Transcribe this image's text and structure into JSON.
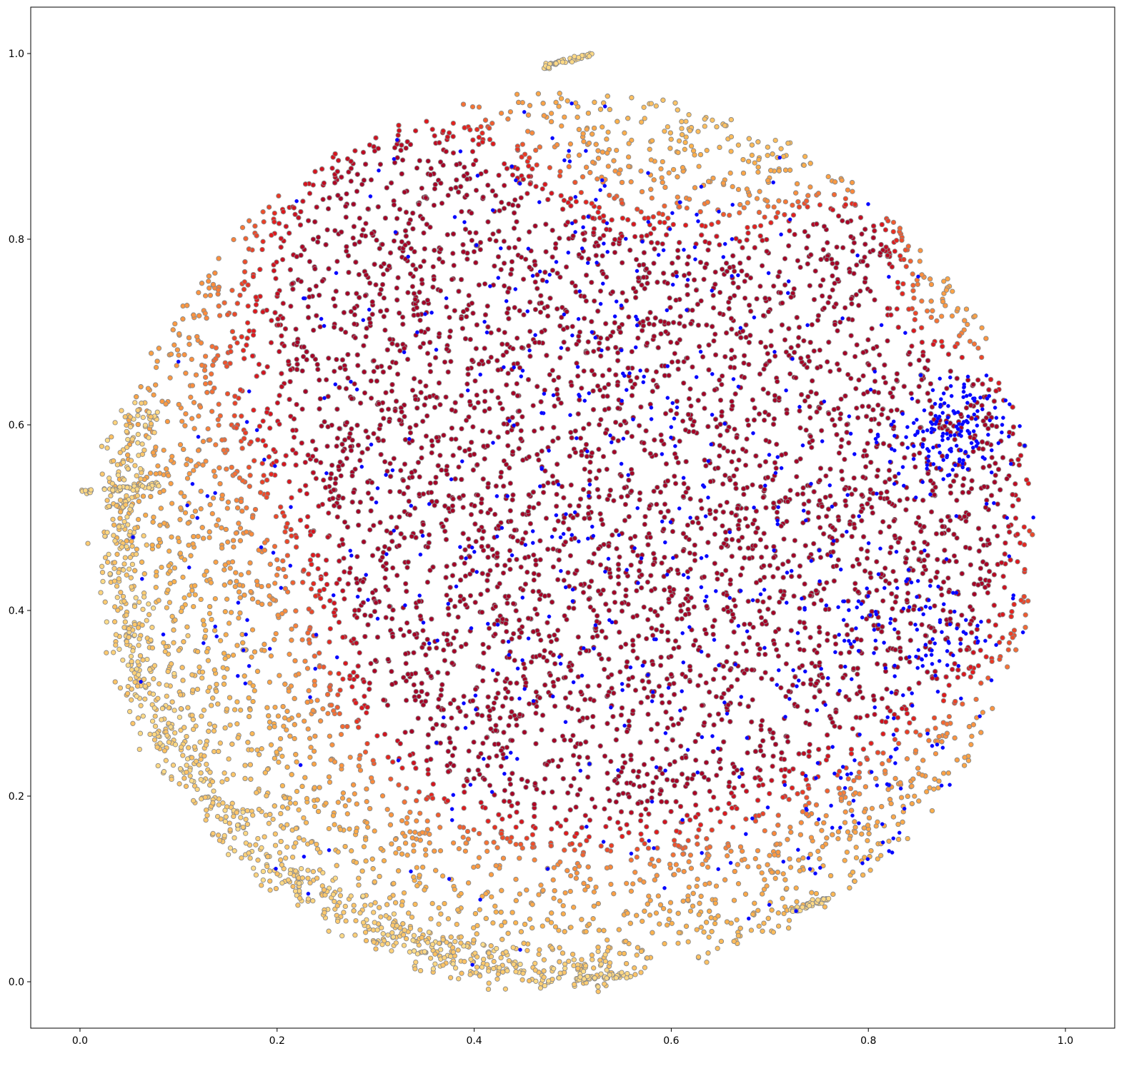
{
  "chart_data": {
    "type": "scatter",
    "title": "",
    "xlabel": "",
    "ylabel": "",
    "xlim": [
      -0.05,
      1.05
    ],
    "ylim": [
      -0.05,
      1.05
    ],
    "x_ticks": [
      0.0,
      0.2,
      0.4,
      0.6,
      0.8,
      1.0
    ],
    "y_ticks": [
      0.0,
      0.2,
      0.4,
      0.6,
      0.8,
      1.0
    ],
    "x_tick_labels": [
      "0.0",
      "0.2",
      "0.4",
      "0.6",
      "0.8",
      "1.0"
    ],
    "y_tick_labels": [
      "0.0",
      "0.2",
      "0.4",
      "0.6",
      "0.8",
      "1.0"
    ],
    "grid": false,
    "legend": "none",
    "colormap": "YlOrRd",
    "colors": {
      "marker_edge": "#8a8a8a",
      "highlight": "#0000ff",
      "low": "#fed976",
      "mid": "#fd8d3c",
      "high": "#e31a1c",
      "peak": "#a50026"
    },
    "description_of_shape": null,
    "dense_clusters": [
      {
        "x": 0.47,
        "y": 0.6,
        "spread": 0.09,
        "intensity": 0.95
      },
      {
        "x": 0.66,
        "y": 0.68,
        "spread": 0.07,
        "intensity": 0.95
      },
      {
        "x": 0.53,
        "y": 0.45,
        "spread": 0.11,
        "intensity": 0.9
      },
      {
        "x": 0.62,
        "y": 0.35,
        "spread": 0.1,
        "intensity": 0.88
      },
      {
        "x": 0.42,
        "y": 0.33,
        "spread": 0.08,
        "intensity": 0.75
      },
      {
        "x": 0.78,
        "y": 0.55,
        "spread": 0.08,
        "intensity": 0.7
      },
      {
        "x": 0.85,
        "y": 0.42,
        "spread": 0.07,
        "intensity": 0.65
      },
      {
        "x": 0.35,
        "y": 0.75,
        "spread": 0.08,
        "intensity": 0.6
      },
      {
        "x": 0.33,
        "y": 0.85,
        "spread": 0.07,
        "intensity": 0.55
      },
      {
        "x": 0.78,
        "y": 0.79,
        "spread": 0.03,
        "intensity": 0.75
      },
      {
        "x": 0.88,
        "y": 0.59,
        "spread": 0.04,
        "intensity": 0.8
      },
      {
        "x": 0.2,
        "y": 0.62,
        "spread": 0.1,
        "intensity": 0.4
      }
    ],
    "highlight_clusters": [
      {
        "x": 0.88,
        "y": 0.59,
        "spread": 0.03,
        "count": 160
      },
      {
        "x": 0.84,
        "y": 0.38,
        "spread": 0.04,
        "count": 90
      },
      {
        "x": 0.6,
        "y": 0.45,
        "spread": 0.2,
        "count": 420
      },
      {
        "x": 0.5,
        "y": 0.75,
        "spread": 0.12,
        "count": 120
      },
      {
        "x": 0.78,
        "y": 0.18,
        "spread": 0.06,
        "count": 60
      },
      {
        "x": 0.15,
        "y": 0.45,
        "spread": 0.12,
        "count": 60
      }
    ],
    "arc_features": [
      {
        "name": "outer-left-arc",
        "cx": 0.5,
        "cy": 0.47,
        "r": 0.46,
        "start_deg": 160,
        "end_deg": 275
      },
      {
        "name": "top-streak",
        "x": [
          0.47,
          0.52
        ],
        "y": [
          0.985,
          1.0
        ]
      },
      {
        "name": "left-streak",
        "x": [
          0.0,
          0.08
        ],
        "y": [
          0.528,
          0.535
        ]
      },
      {
        "name": "bottom-right-streak",
        "x": [
          0.72,
          0.76
        ],
        "y": [
          0.075,
          0.09
        ]
      },
      {
        "name": "bottom-streak",
        "x": [
          0.5,
          0.56
        ],
        "y": [
          0.003,
          0.007
        ]
      }
    ]
  }
}
